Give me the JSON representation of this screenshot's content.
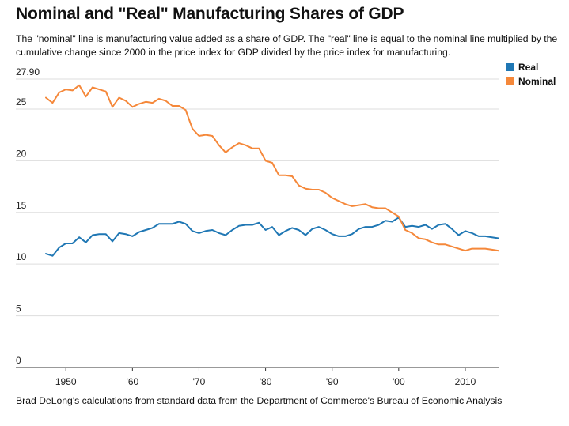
{
  "title": "Nominal and \"Real\" Manufacturing Shares of GDP",
  "subtitle": "The \"nominal\" line is manufacturing value added as a share of GDP. The \"real\" line is equal to the nominal line multiplied by the cumulative change since 2000 in the price index for GDP divided by the price index for manufacturing.",
  "source": "Brad DeLong's calculations from standard data from the Department of Commerce's Bureau of Economic Analysis",
  "colors": {
    "real": "#1f77b4",
    "nominal": "#f5883a",
    "grid": "#dddddd",
    "axis": "#333333"
  },
  "chart_data": {
    "type": "line",
    "title": "Nominal and \"Real\" Manufacturing Shares of GDP",
    "xlabel": "",
    "ylabel": "",
    "xlim": [
      1947,
      2015
    ],
    "ylim": [
      0,
      27.9
    ],
    "grid": true,
    "legend_position": "top-right",
    "y_ticks": [
      {
        "value": 0,
        "label": "0"
      },
      {
        "value": 5,
        "label": "5"
      },
      {
        "value": 10,
        "label": "10"
      },
      {
        "value": 15,
        "label": "15"
      },
      {
        "value": 20,
        "label": "20"
      },
      {
        "value": 25,
        "label": "25"
      },
      {
        "value": 27.9,
        "label": "27.90"
      }
    ],
    "x_ticks": [
      {
        "value": 1950,
        "label": "1950"
      },
      {
        "value": 1960,
        "label": "'60"
      },
      {
        "value": 1970,
        "label": "'70"
      },
      {
        "value": 1980,
        "label": "'80"
      },
      {
        "value": 1990,
        "label": "'90"
      },
      {
        "value": 2000,
        "label": "'00"
      },
      {
        "value": 2010,
        "label": "2010"
      }
    ],
    "x": [
      1947,
      1948,
      1949,
      1950,
      1951,
      1952,
      1953,
      1954,
      1955,
      1956,
      1957,
      1958,
      1959,
      1960,
      1961,
      1962,
      1963,
      1964,
      1965,
      1966,
      1967,
      1968,
      1969,
      1970,
      1971,
      1972,
      1973,
      1974,
      1975,
      1976,
      1977,
      1978,
      1979,
      1980,
      1981,
      1982,
      1983,
      1984,
      1985,
      1986,
      1987,
      1988,
      1989,
      1990,
      1991,
      1992,
      1993,
      1994,
      1995,
      1996,
      1997,
      1998,
      1999,
      2000,
      2001,
      2002,
      2003,
      2004,
      2005,
      2006,
      2007,
      2008,
      2009,
      2010,
      2011,
      2012,
      2013,
      2014,
      2015
    ],
    "series": [
      {
        "name": "Real",
        "values": [
          11.0,
          10.8,
          11.6,
          12.0,
          12.0,
          12.6,
          12.1,
          12.8,
          12.9,
          12.9,
          12.2,
          13.0,
          12.9,
          12.7,
          13.1,
          13.3,
          13.5,
          13.9,
          13.9,
          13.9,
          14.1,
          13.9,
          13.2,
          13.0,
          13.2,
          13.3,
          13.0,
          12.8,
          13.3,
          13.7,
          13.8,
          13.8,
          14.0,
          13.3,
          13.6,
          12.8,
          13.2,
          13.5,
          13.3,
          12.8,
          13.4,
          13.6,
          13.3,
          12.9,
          12.7,
          12.7,
          12.9,
          13.4,
          13.6,
          13.6,
          13.8,
          14.2,
          14.1,
          14.5,
          13.6,
          13.7,
          13.6,
          13.8,
          13.4,
          13.8,
          13.9,
          13.4,
          12.8,
          13.2,
          13.0,
          12.7,
          12.7,
          12.6,
          12.5
        ]
      },
      {
        "name": "Nominal",
        "values": [
          26.1,
          25.6,
          26.6,
          26.9,
          26.8,
          27.3,
          26.2,
          27.1,
          26.9,
          26.7,
          25.2,
          26.1,
          25.8,
          25.2,
          25.5,
          25.7,
          25.6,
          26.0,
          25.8,
          25.3,
          25.3,
          24.9,
          23.1,
          22.4,
          22.5,
          22.4,
          21.5,
          20.8,
          21.3,
          21.7,
          21.5,
          21.2,
          21.2,
          20.0,
          19.8,
          18.6,
          18.6,
          18.5,
          17.6,
          17.3,
          17.2,
          17.2,
          16.9,
          16.4,
          16.1,
          15.8,
          15.6,
          15.7,
          15.8,
          15.5,
          15.4,
          15.4,
          15.0,
          14.6,
          13.3,
          13.0,
          12.5,
          12.4,
          12.1,
          11.9,
          11.9,
          11.7,
          11.5,
          11.3,
          11.5,
          11.5,
          11.5,
          11.4,
          11.3
        ]
      }
    ]
  }
}
